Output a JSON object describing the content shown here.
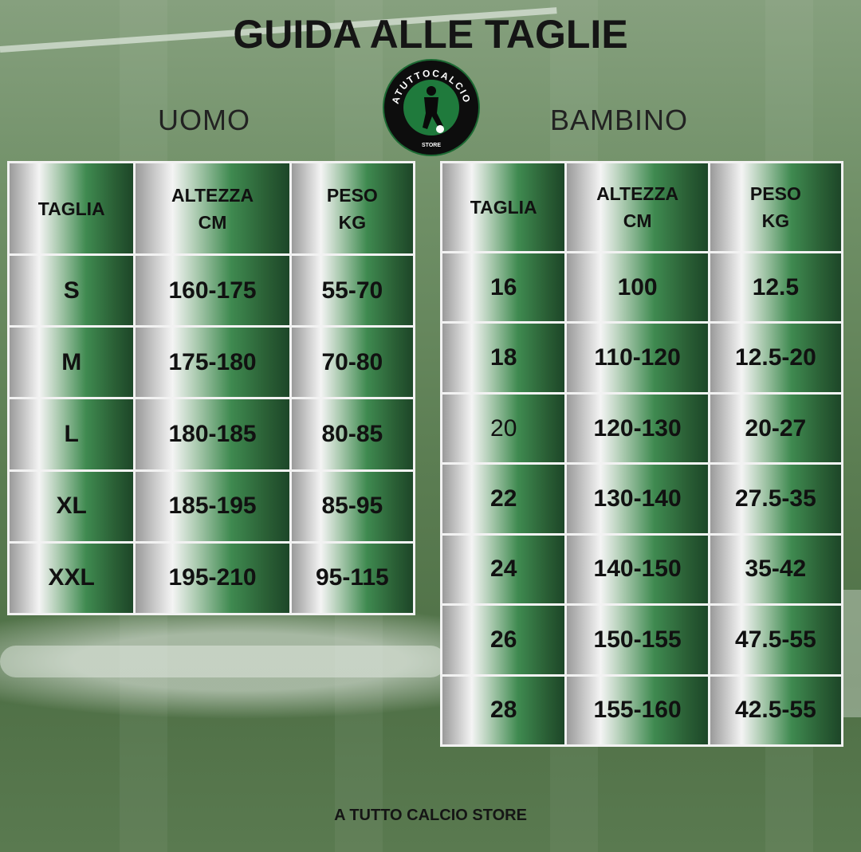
{
  "title": "GUIDA ALLE TAGLIE",
  "logo": {
    "text_top": "ATUTTOCALCIO",
    "text_bottom": "STORE",
    "colors": {
      "ring": "#0d0d0d",
      "center": "#1f7a3c"
    }
  },
  "uomo": {
    "label": "UOMO",
    "headers": [
      [
        "TAGLIA"
      ],
      [
        "ALTEZZA",
        "CM"
      ],
      [
        "PESO",
        "KG"
      ]
    ],
    "rows": [
      [
        "S",
        "160-175",
        "55-70"
      ],
      [
        "M",
        "175-180",
        "70-80"
      ],
      [
        "L",
        "180-185",
        "80-85"
      ],
      [
        "XL",
        "185-195",
        "85-95"
      ],
      [
        "XXL",
        "195-210",
        "95-115"
      ]
    ]
  },
  "bambino": {
    "label": "BAMBINO",
    "headers": [
      [
        "TAGLIA"
      ],
      [
        "ALTEZZA",
        "CM"
      ],
      [
        "PESO",
        "KG"
      ]
    ],
    "rows": [
      [
        "16",
        "100",
        "12.5"
      ],
      [
        "18",
        "110-120",
        "12.5-20"
      ],
      [
        "20",
        "120-130",
        "20-27"
      ],
      [
        "22",
        "130-140",
        "27.5-35"
      ],
      [
        "24",
        "140-150",
        "35-42"
      ],
      [
        "26",
        "150-155",
        "47.5-55"
      ],
      [
        "28",
        "155-160",
        "42.5-55"
      ]
    ]
  },
  "footer": "A TUTTO CALCIO STORE",
  "colors": {
    "cell_gradient": [
      "#9a9a9a",
      "#f4f4f4",
      "#3f8a50",
      "#1d4628"
    ]
  }
}
